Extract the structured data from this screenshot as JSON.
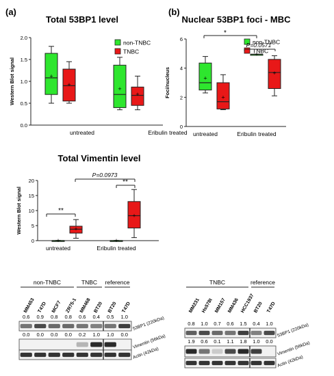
{
  "panels": {
    "a": "(a)",
    "b": "(b)"
  },
  "colors": {
    "non_tnbc": "#2EE62E",
    "tnbc": "#E81818",
    "dark": "#1a1a1a"
  },
  "chart_data": [
    {
      "id": "total53bp1",
      "type": "box",
      "title": "Total 53BP1 level",
      "ylabel": "Western Blot signal",
      "ylim": [
        0,
        2.0
      ],
      "yticks": [
        "0.0",
        "0.5",
        "1.0",
        "1.5",
        "2.0"
      ],
      "categories": [
        "untreated",
        "Eribulin treated"
      ],
      "legend": [
        "non-TNBC",
        "TNBC"
      ],
      "series": [
        {
          "name": "non-TNBC",
          "boxes": [
            {
              "min": 0.5,
              "q1": 0.7,
              "median": 1.08,
              "q3": 1.64,
              "max": 1.8,
              "mean": 1.12
            },
            {
              "min": 0.35,
              "q1": 0.4,
              "median": 0.7,
              "q3": 1.37,
              "max": 1.55,
              "mean": 0.83
            }
          ]
        },
        {
          "name": "TNBC",
          "boxes": [
            {
              "min": 0.5,
              "q1": 0.55,
              "median": 0.9,
              "q3": 1.28,
              "max": 1.45,
              "mean": 0.92
            },
            {
              "min": 0.35,
              "q1": 0.45,
              "median": 0.68,
              "q3": 0.87,
              "max": 1.12,
              "mean": 0.7
            }
          ]
        }
      ]
    },
    {
      "id": "nuclearfoci",
      "type": "box",
      "title": "Nuclear 53BP1 foci - MBC",
      "ylabel": "Foci/nucleus",
      "ylim": [
        0,
        6
      ],
      "yticks": [
        "0",
        "2",
        "4",
        "6"
      ],
      "categories": [
        "untreated",
        "Eribulin treated"
      ],
      "legend": [
        "non-TNBC",
        "TNBC"
      ],
      "annotations": [
        "*",
        "P=0.0571"
      ],
      "series": [
        {
          "name": "non-TNBC",
          "boxes": [
            {
              "min": 2.3,
              "q1": 2.5,
              "median": 3.0,
              "q3": 4.35,
              "max": 4.8,
              "mean": 3.3
            },
            {
              "min": 4.95,
              "q1": 4.95,
              "median": 4.95,
              "q3": 4.95,
              "max": 4.95,
              "mean": 4.95
            }
          ]
        },
        {
          "name": "TNBC",
          "boxes": [
            {
              "min": 1.15,
              "q1": 1.2,
              "median": 1.7,
              "q3": 3.0,
              "max": 3.55,
              "mean": 2.0
            },
            {
              "min": 2.1,
              "q1": 2.6,
              "median": 3.7,
              "q3": 4.6,
              "max": 4.85,
              "mean": 3.65
            }
          ]
        }
      ]
    },
    {
      "id": "vimentin",
      "type": "box",
      "title": "Total Vimentin level",
      "ylabel": "Western Blot signal",
      "ylim": [
        0,
        20
      ],
      "yticks": [
        "0",
        "5",
        "10",
        "15",
        "20"
      ],
      "categories": [
        "untreated",
        "Eribulin treated"
      ],
      "annotations": [
        "**",
        "**",
        "P=0.0973"
      ],
      "series": [
        {
          "name": "non-TNBC",
          "boxes": [
            {
              "min": 0.0,
              "q1": 0.0,
              "median": 0.0,
              "q3": 0.05,
              "max": 0.1,
              "mean": 0.02
            },
            {
              "min": 0.0,
              "q1": 0.0,
              "median": 0.0,
              "q3": 0.05,
              "max": 0.1,
              "mean": 0.02
            }
          ]
        },
        {
          "name": "TNBC",
          "boxes": [
            {
              "min": 0.8,
              "q1": 2.5,
              "median": 3.8,
              "q3": 4.8,
              "max": 7.0,
              "mean": 3.9
            },
            {
              "min": 1.0,
              "q1": 4.2,
              "median": 8.3,
              "q3": 13.0,
              "max": 17.0,
              "mean": 8.3
            }
          ]
        }
      ]
    }
  ],
  "blots": {
    "left": {
      "groups": [
        "non-TNBC",
        "TNBC",
        "reference"
      ],
      "lanes": [
        "MM453",
        "T47D",
        "MCF7",
        "ZR75-1",
        "MM468",
        "BT20",
        "BT20",
        "T47D"
      ],
      "rows": [
        {
          "values": [
            "0.6",
            "0.9",
            "0.8",
            "0.8",
            "0.6",
            "0.4",
            "0.5",
            "1.0"
          ],
          "label": "53BP1 (220kDa)"
        },
        {
          "values": [
            "0.0",
            "0.0",
            "0.0",
            "0.0",
            "0.2",
            "1.0",
            "1.0",
            "0.0"
          ],
          "label": "Vimentin (56kDa)"
        },
        {
          "label": "Actin (42kDa)"
        }
      ]
    },
    "right": {
      "groups": [
        "TNBC",
        "reference"
      ],
      "lanes": [
        "MM231",
        "Hs578t",
        "MM157",
        "MM436",
        "HCC1937",
        "BT20",
        "T47D"
      ],
      "rows": [
        {
          "values": [
            "0.8",
            "1.0",
            "0.7",
            "0.6",
            "1.5",
            "0.4",
            "1.0"
          ],
          "label": "53BP1 (220kDa)"
        },
        {
          "values": [
            "1.9",
            "0.6",
            "0.1",
            "1.1",
            "1.8",
            "1.0",
            "0.0"
          ],
          "label": "Vimentin (56kDa)"
        },
        {
          "label": "Actin (42kDa)"
        }
      ]
    }
  }
}
